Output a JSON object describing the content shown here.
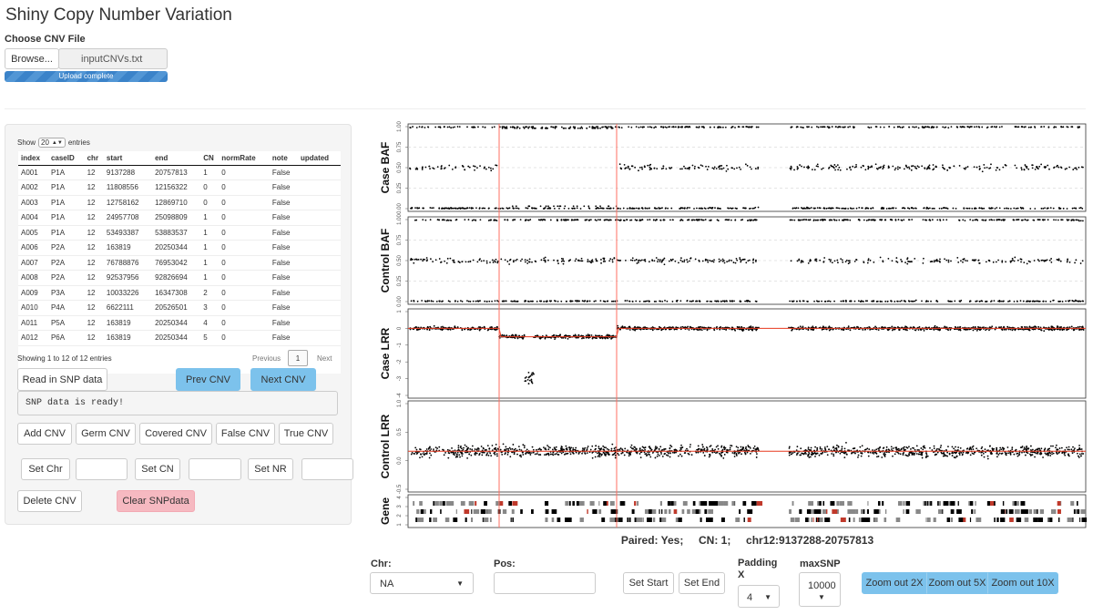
{
  "app": {
    "title": "Shiny Copy Number Variation"
  },
  "file": {
    "label": "Choose CNV File",
    "browse_label": "Browse...",
    "filename": "inputCNVs.txt",
    "progress_label": "Upload complete",
    "progress": 1.0
  },
  "table": {
    "show_label": "Show",
    "page_size": "20",
    "entries_label": "entries",
    "columns": [
      "index",
      "caseID",
      "chr",
      "start",
      "end",
      "CN",
      "normRate",
      "note",
      "updated"
    ],
    "rows": [
      [
        "A001",
        "P1A",
        "12",
        "9137288",
        "20757813",
        "1",
        "0",
        "False",
        ""
      ],
      [
        "A002",
        "P1A",
        "12",
        "11808556",
        "12156322",
        "0",
        "0",
        "False",
        ""
      ],
      [
        "A003",
        "P1A",
        "12",
        "12758162",
        "12869710",
        "0",
        "0",
        "False",
        ""
      ],
      [
        "A004",
        "P1A",
        "12",
        "24957708",
        "25098809",
        "1",
        "0",
        "False",
        ""
      ],
      [
        "A005",
        "P1A",
        "12",
        "53493387",
        "53883537",
        "1",
        "0",
        "False",
        ""
      ],
      [
        "A006",
        "P2A",
        "12",
        "163819",
        "20250344",
        "1",
        "0",
        "False",
        ""
      ],
      [
        "A007",
        "P2A",
        "12",
        "76788876",
        "76953042",
        "1",
        "0",
        "False",
        ""
      ],
      [
        "A008",
        "P2A",
        "12",
        "92537956",
        "92826694",
        "1",
        "0",
        "False",
        ""
      ],
      [
        "A009",
        "P3A",
        "12",
        "10033226",
        "16347308",
        "2",
        "0",
        "False",
        ""
      ],
      [
        "A010",
        "P4A",
        "12",
        "6622111",
        "20526501",
        "3",
        "0",
        "False",
        ""
      ],
      [
        "A011",
        "P5A",
        "12",
        "163819",
        "20250344",
        "4",
        "0",
        "False",
        ""
      ],
      [
        "A012",
        "P6A",
        "12",
        "163819",
        "20250344",
        "5",
        "0",
        "False",
        ""
      ]
    ],
    "info": "Showing 1 to 12 of 12 entries",
    "prev_label": "Previous",
    "page": "1",
    "next_label": "Next"
  },
  "controls": {
    "read_snp": "Read in SNP data",
    "prev_cnv": "Prev CNV",
    "next_cnv": "Next CNV",
    "status": "SNP data is ready!",
    "add_cnv": "Add CNV",
    "germ_cnv": "Germ CNV",
    "covered_cnv": "Covered CNV",
    "false_cnv": "False CNV",
    "true_cnv": "True CNV",
    "set_chr": "Set Chr",
    "set_cn": "Set CN",
    "set_nr": "Set NR",
    "delete_cnv": "Delete CNV",
    "clear_snp": "Clear SNPdata"
  },
  "plots": {
    "panels": [
      {
        "label": "Case BAF",
        "ticks": [
          "1.00",
          "0.75",
          "0.50",
          "0.25",
          "0.00"
        ]
      },
      {
        "label": "Control BAF",
        "ticks": [
          "1.00",
          "0.75",
          "0.50",
          "0.25",
          "0.00"
        ]
      },
      {
        "label": "Case LRR",
        "ticks": [
          "1",
          "0",
          "-1",
          "-2",
          "-3",
          "-4"
        ]
      },
      {
        "label": "Control LRR",
        "ticks": [
          "1.0",
          "0.5",
          "0.0",
          "-0.5"
        ]
      },
      {
        "label": "Gene",
        "ticks": [
          "4",
          "3",
          "2",
          "1"
        ]
      }
    ],
    "summary": "Paired: Yes;     CN: 1;     chr12:9137288-20757813",
    "colors": {
      "points": "#000000",
      "cnv_lines": "#ff6f61",
      "fit": "#e8391f"
    }
  },
  "bottom": {
    "chr_label": "Chr:",
    "chr_value": "NA",
    "pos_label": "Pos:",
    "pos_value": "",
    "set_start": "Set Start",
    "set_end": "Set End",
    "padding_label": "Padding X",
    "padding_value": "4",
    "maxsnp_label": "maxSNP",
    "maxsnp_value": "10000",
    "zoom_2x": "Zoom out 2X",
    "zoom_5x": "Zoom out 5X",
    "zoom_10x": "Zoom out 10X"
  }
}
